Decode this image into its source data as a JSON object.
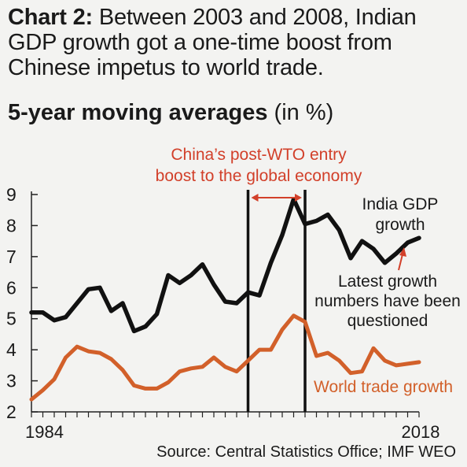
{
  "heading": {
    "lead": "Chart 2:",
    "text": "Between 2003 and 2008, Indian GDP growth got a one-time boost from Chinese impetus to world trade.",
    "subtitle_bold": "5-year moving averages",
    "subtitle_rest": "(in %)"
  },
  "source": "Source: Central Statistics Office; IMF WEO",
  "colors": {
    "india": "#111111",
    "trade": "#d2602a",
    "accent": "#d2402a"
  },
  "chart_data": {
    "type": "line",
    "x": [
      1984,
      1985,
      1986,
      1987,
      1988,
      1989,
      1990,
      1991,
      1992,
      1993,
      1994,
      1995,
      1996,
      1997,
      1998,
      1999,
      2000,
      2001,
      2002,
      2003,
      2004,
      2005,
      2006,
      2007,
      2008,
      2009,
      2010,
      2011,
      2012,
      2013,
      2014,
      2015,
      2016,
      2017,
      2018
    ],
    "series": [
      {
        "name": "India GDP growth",
        "color": "#111111",
        "values": [
          5.2,
          5.2,
          4.95,
          5.05,
          5.5,
          5.95,
          6.0,
          5.25,
          5.5,
          4.6,
          4.75,
          5.15,
          6.4,
          6.15,
          6.4,
          6.75,
          6.1,
          5.55,
          5.5,
          5.85,
          5.75,
          6.8,
          7.7,
          8.85,
          8.05,
          8.15,
          8.35,
          7.85,
          6.95,
          7.5,
          7.25,
          6.8,
          7.1,
          7.45,
          7.6
        ]
      },
      {
        "name": "World trade growth",
        "color": "#d2602a",
        "values": [
          2.4,
          2.7,
          3.05,
          3.75,
          4.1,
          3.95,
          3.9,
          3.7,
          3.35,
          2.85,
          2.75,
          2.75,
          2.95,
          3.3,
          3.4,
          3.45,
          3.75,
          3.45,
          3.3,
          3.65,
          4.0,
          4.0,
          4.65,
          5.1,
          4.9,
          3.8,
          3.9,
          3.65,
          3.25,
          3.3,
          4.05,
          3.65,
          3.5,
          3.55,
          3.6
        ]
      }
    ],
    "x_tick_labels": [
      "1984",
      "2018"
    ],
    "y_ticks": [
      2,
      3,
      4,
      5,
      6,
      7,
      8,
      9
    ],
    "xlim": [
      1984,
      2018
    ],
    "ylim": [
      2,
      9
    ],
    "vlines": [
      2003,
      2008
    ],
    "annotations": {
      "band_label": "China’s post-WTO entry boost to the global economy",
      "india_label": "India GDP growth",
      "trade_label": "World trade growth",
      "note": "Latest growth numbers have been questioned"
    }
  }
}
